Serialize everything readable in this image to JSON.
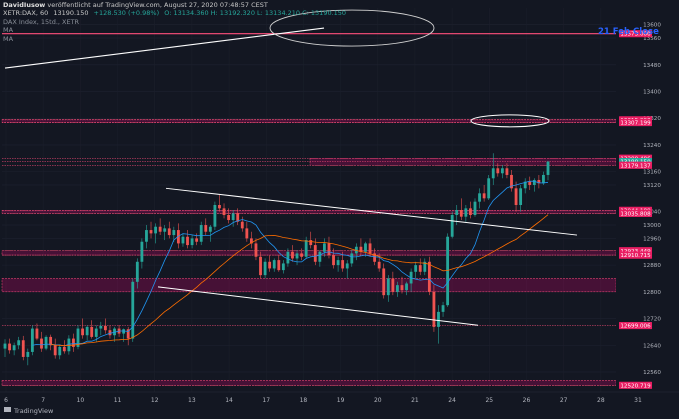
{
  "header": {
    "author": "DavidIusow",
    "published": "veröffentlicht auf TradingView.com, August 27, 2020 07:48:57 CEST",
    "symbol_line": "XETR:DAX, 60",
    "last_price": "13190.150",
    "change": "+128.530 (+0.98%)",
    "ohlc": "O: 13134.360  H: 13192.320  L: 13134.210  C: 13190.150",
    "legend_title": "DAX Index, 15td., XETR",
    "ma1": "MA",
    "ma2": "MA"
  },
  "annotations": {
    "callout": "21 Feb Close",
    "footer_logo": "TradingView"
  },
  "colors": {
    "background": "#131722",
    "up": "#26a69a",
    "down": "#ef5350",
    "level_line": "#ff4f7b",
    "level_band": "#ff0080",
    "ma_fast": "#2196f3",
    "ma_slow": "#ff6d00",
    "callout": "#2962ff",
    "trendline": "#ffffff"
  },
  "chart_data": {
    "type": "candlestick",
    "title": "DAX Index, 15td., XETR",
    "ylim": [
      12500,
      13650
    ],
    "y_ticks": [
      13600,
      13560,
      13480,
      13400,
      13320,
      13240,
      13160,
      13120,
      13040,
      13000,
      12960,
      12880,
      12800,
      12720,
      12640,
      12560
    ],
    "x_ticks": [
      "6",
      "7",
      "10",
      "11",
      "12",
      "13",
      "14",
      "17",
      "18",
      "19",
      "20",
      "21",
      "24",
      "25",
      "26",
      "27",
      "28",
      "31"
    ],
    "price_levels": [
      {
        "label": "13573.000",
        "value": 13573
      },
      {
        "label": "13315.993",
        "value": 13315
      },
      {
        "label": "13307.199",
        "value": 13307
      },
      {
        "label": "13200.486",
        "value": 13200
      },
      {
        "label": "13190.150",
        "value": 13190
      },
      {
        "label": "13179.137",
        "value": 13179
      },
      {
        "label": "13044.189",
        "value": 13044
      },
      {
        "label": "13035.808",
        "value": 13035
      },
      {
        "label": "12923.449",
        "value": 12923
      },
      {
        "label": "12910.715",
        "value": 12910
      },
      {
        "label": "12699.006",
        "value": 12699
      },
      {
        "label": "12520.719",
        "value": 12520
      }
    ],
    "bands": [
      {
        "from": 13307,
        "to": 13316
      },
      {
        "from": 13179,
        "to": 13200
      },
      {
        "from": 13035,
        "to": 13044
      },
      {
        "from": 12910,
        "to": 12923
      },
      {
        "from": 12800,
        "to": 12840
      },
      {
        "from": 12520,
        "to": 12535
      }
    ],
    "candles": [
      [
        12630,
        12658,
        12605,
        12645
      ],
      [
        12645,
        12660,
        12615,
        12625
      ],
      [
        12625,
        12648,
        12610,
        12640
      ],
      [
        12640,
        12665,
        12628,
        12655
      ],
      [
        12655,
        12668,
        12595,
        12605
      ],
      [
        12605,
        12630,
        12580,
        12620
      ],
      [
        12620,
        12700,
        12610,
        12690
      ],
      [
        12690,
        12705,
        12655,
        12660
      ],
      [
        12660,
        12680,
        12620,
        12630
      ],
      [
        12630,
        12670,
        12625,
        12665
      ],
      [
        12665,
        12672,
        12625,
        12640
      ],
      [
        12640,
        12660,
        12600,
        12610
      ],
      [
        12610,
        12640,
        12598,
        12635
      ],
      [
        12635,
        12655,
        12615,
        12622
      ],
      [
        12622,
        12670,
        12612,
        12660
      ],
      [
        12660,
        12675,
        12620,
        12635
      ],
      [
        12635,
        12700,
        12628,
        12690
      ],
      [
        12690,
        12720,
        12660,
        12670
      ],
      [
        12670,
        12700,
        12655,
        12695
      ],
      [
        12695,
        12715,
        12660,
        12665
      ],
      [
        12665,
        12700,
        12650,
        12690
      ],
      [
        12690,
        12710,
        12670,
        12698
      ],
      [
        12698,
        12720,
        12675,
        12685
      ],
      [
        12685,
        12700,
        12660,
        12670
      ],
      [
        12670,
        12695,
        12650,
        12690
      ],
      [
        12690,
        12700,
        12665,
        12675
      ],
      [
        12675,
        12690,
        12650,
        12688
      ],
      [
        12688,
        12695,
        12640,
        12660
      ],
      [
        12660,
        12840,
        12650,
        12830
      ],
      [
        12830,
        12900,
        12810,
        12890
      ],
      [
        12890,
        12960,
        12870,
        12950
      ],
      [
        12950,
        13000,
        12930,
        12985
      ],
      [
        12985,
        13010,
        12960,
        12975
      ],
      [
        12975,
        13005,
        12945,
        12995
      ],
      [
        12995,
        13020,
        12970,
        12980
      ],
      [
        12980,
        13000,
        12955,
        12990
      ],
      [
        12990,
        13010,
        12960,
        12970
      ],
      [
        12970,
        12995,
        12950,
        12985
      ],
      [
        12985,
        13005,
        12930,
        12945
      ],
      [
        12945,
        12975,
        12935,
        12965
      ],
      [
        12965,
        12985,
        12930,
        12940
      ],
      [
        12940,
        12970,
        12930,
        12960
      ],
      [
        12960,
        12975,
        12940,
        12950
      ],
      [
        12950,
        13010,
        12940,
        13000
      ],
      [
        13000,
        13020,
        12970,
        12980
      ],
      [
        12980,
        13000,
        12950,
        12995
      ],
      [
        12995,
        13070,
        12985,
        13060
      ],
      [
        13060,
        13090,
        13040,
        13050
      ],
      [
        13050,
        13065,
        13020,
        13030
      ],
      [
        13030,
        13050,
        13005,
        13015
      ],
      [
        13015,
        13045,
        12995,
        13035
      ],
      [
        13035,
        13050,
        13000,
        13010
      ],
      [
        13010,
        13025,
        12980,
        12990
      ],
      [
        12990,
        13010,
        12950,
        12960
      ],
      [
        12960,
        12980,
        12930,
        12945
      ],
      [
        12945,
        12960,
        12895,
        12905
      ],
      [
        12905,
        12920,
        12840,
        12850
      ],
      [
        12850,
        12900,
        12840,
        12890
      ],
      [
        12890,
        12910,
        12860,
        12870
      ],
      [
        12870,
        12900,
        12860,
        12895
      ],
      [
        12895,
        12910,
        12860,
        12865
      ],
      [
        12865,
        12895,
        12855,
        12885
      ],
      [
        12885,
        12930,
        12875,
        12920
      ],
      [
        12920,
        12940,
        12890,
        12900
      ],
      [
        12900,
        12925,
        12880,
        12915
      ],
      [
        12915,
        12930,
        12895,
        12905
      ],
      [
        12905,
        12965,
        12900,
        12955
      ],
      [
        12955,
        12980,
        12930,
        12940
      ],
      [
        12940,
        12960,
        12880,
        12890
      ],
      [
        12890,
        12925,
        12875,
        12920
      ],
      [
        12920,
        12960,
        12905,
        12945
      ],
      [
        12945,
        12965,
        12900,
        12910
      ],
      [
        12910,
        12930,
        12870,
        12880
      ],
      [
        12880,
        12905,
        12860,
        12895
      ],
      [
        12895,
        12920,
        12860,
        12870
      ],
      [
        12870,
        12895,
        12840,
        12885
      ],
      [
        12885,
        12925,
        12875,
        12915
      ],
      [
        12915,
        12945,
        12895,
        12935
      ],
      [
        12935,
        12960,
        12910,
        12920
      ],
      [
        12920,
        12950,
        12905,
        12945
      ],
      [
        12945,
        12960,
        12905,
        12915
      ],
      [
        12915,
        12930,
        12880,
        12890
      ],
      [
        12890,
        12915,
        12860,
        12870
      ],
      [
        12870,
        12885,
        12780,
        12790
      ],
      [
        12790,
        12850,
        12770,
        12840
      ],
      [
        12840,
        12860,
        12790,
        12800
      ],
      [
        12800,
        12830,
        12785,
        12820
      ],
      [
        12820,
        12845,
        12795,
        12805
      ],
      [
        12805,
        12830,
        12790,
        12825
      ],
      [
        12825,
        12870,
        12800,
        12860
      ],
      [
        12860,
        12890,
        12840,
        12880
      ],
      [
        12880,
        12900,
        12850,
        12860
      ],
      [
        12860,
        12900,
        12850,
        12890
      ],
      [
        12890,
        12905,
        12790,
        12800
      ],
      [
        12800,
        12820,
        12680,
        12695
      ],
      [
        12695,
        12760,
        12645,
        12740
      ],
      [
        12740,
        12770,
        12725,
        12760
      ],
      [
        12760,
        12975,
        12755,
        12965
      ],
      [
        12965,
        13040,
        12960,
        13030
      ],
      [
        13030,
        13060,
        13000,
        13045
      ],
      [
        13045,
        13080,
        13015,
        13025
      ],
      [
        13025,
        13060,
        13010,
        13050
      ],
      [
        13050,
        13070,
        13020,
        13030
      ],
      [
        13030,
        13080,
        13025,
        13070
      ],
      [
        13070,
        13110,
        13050,
        13095
      ],
      [
        13095,
        13120,
        13070,
        13080
      ],
      [
        13080,
        13150,
        13075,
        13140
      ],
      [
        13140,
        13215,
        13120,
        13170
      ],
      [
        13170,
        13185,
        13145,
        13155
      ],
      [
        13155,
        13180,
        13140,
        13170
      ],
      [
        13170,
        13185,
        13140,
        13150
      ],
      [
        13150,
        13165,
        13100,
        13110
      ],
      [
        13110,
        13130,
        13040,
        13060
      ],
      [
        13060,
        13120,
        13040,
        13110
      ],
      [
        13110,
        13140,
        13095,
        13130
      ],
      [
        13130,
        13145,
        13105,
        13120
      ],
      [
        13120,
        13140,
        13100,
        13135
      ],
      [
        13135,
        13150,
        13110,
        13125
      ],
      [
        13125,
        13160,
        13120,
        13150
      ],
      [
        13150,
        13192,
        13134,
        13190
      ]
    ],
    "x_label_positions_hint": "day separators"
  }
}
